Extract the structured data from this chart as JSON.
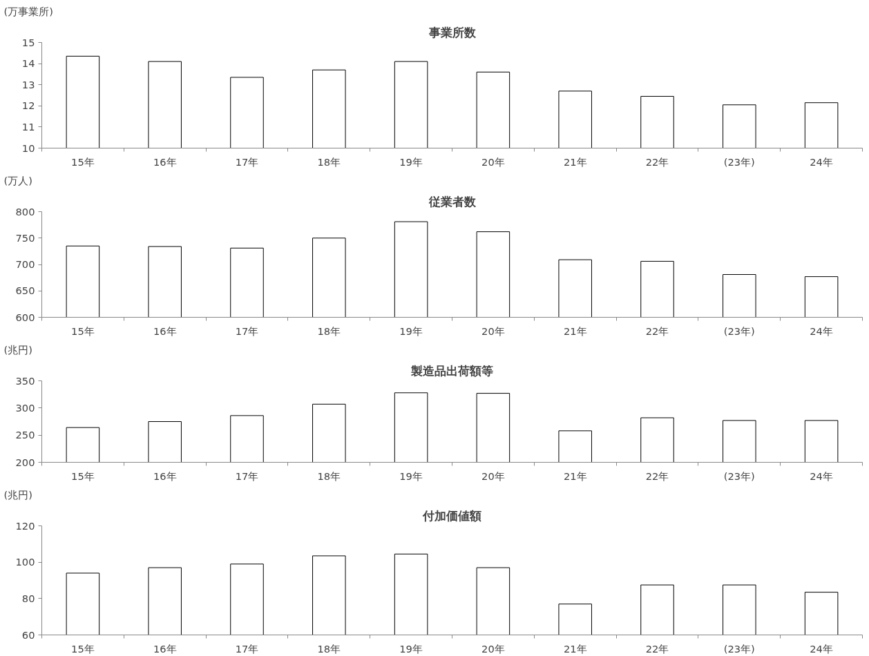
{
  "chart_data": [
    {
      "type": "bar",
      "title": "事業所数",
      "ylabel": "(万事業所)",
      "categories": [
        "15年",
        "16年",
        "17年",
        "18年",
        "19年",
        "20年",
        "21年",
        "22年",
        "(23年)",
        "24年"
      ],
      "color": "#ffffff",
      "values": [
        14.35,
        14.1,
        13.35,
        13.7,
        14.1,
        13.6,
        12.7,
        12.45,
        12.05,
        12.15
      ],
      "ylim": [
        10,
        15
      ],
      "yticks": [
        10,
        11,
        12,
        13,
        14,
        15
      ]
    },
    {
      "type": "bar",
      "title": "従業者数",
      "ylabel": "(万人)",
      "categories": [
        "15年",
        "16年",
        "17年",
        "18年",
        "19年",
        "20年",
        "21年",
        "22年",
        "(23年)",
        "24年"
      ],
      "color": "#ffffff",
      "values": [
        735,
        734,
        731,
        750,
        781,
        762,
        709,
        706,
        681,
        677
      ],
      "ylim": [
        600,
        800
      ],
      "yticks": [
        600,
        650,
        700,
        750,
        800
      ]
    },
    {
      "type": "bar",
      "title": "製造品出荷額等",
      "ylabel": "(兆円)",
      "categories": [
        "15年",
        "16年",
        "17年",
        "18年",
        "19年",
        "20年",
        "21年",
        "22年",
        "(23年)",
        "24年"
      ],
      "color": "#ffffff",
      "values": [
        264,
        275,
        286,
        307,
        328,
        327,
        258,
        282,
        277,
        277
      ],
      "ylim": [
        200,
        350
      ],
      "yticks": [
        200,
        250,
        300,
        350
      ]
    },
    {
      "type": "bar",
      "title": "付加価値額",
      "ylabel": "(兆円)",
      "categories": [
        "15年",
        "16年",
        "17年",
        "18年",
        "19年",
        "20年",
        "21年",
        "22年",
        "(23年)",
        "24年"
      ],
      "color": "#ffffff",
      "values": [
        94,
        97,
        99,
        103.5,
        104.5,
        97,
        77,
        87.5,
        87.5,
        83.5
      ],
      "ylim": [
        60,
        120
      ],
      "yticks": [
        60,
        80,
        100,
        120
      ]
    }
  ]
}
